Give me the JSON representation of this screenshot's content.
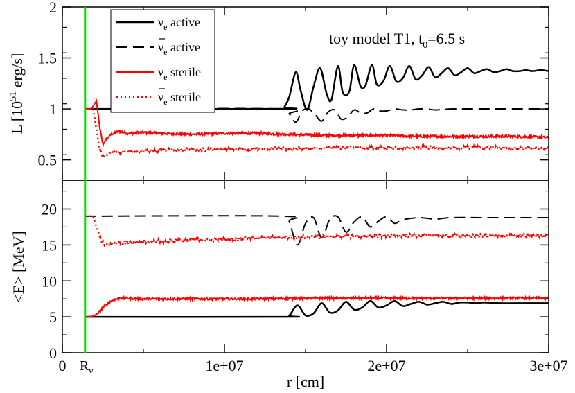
{
  "colors": {
    "active": "#000000",
    "sterile": "#ff0000",
    "rnu_line": "#00dd00",
    "frame": "#000000"
  },
  "chart_data": [
    {
      "type": "line",
      "panel": "top",
      "annotation": "toy model T1, t",
      "annotation_sub": "0",
      "annotation_tail": "=6.5 s",
      "ylabel_main": "L [10",
      "ylabel_sup": "51",
      "ylabel_tail": " erg/s]",
      "ylim": [
        0.3,
        2.0
      ],
      "xlim": [
        0,
        30000000.0
      ],
      "yticks": [
        {
          "value": 0.5,
          "label": "0.5"
        },
        {
          "value": 1.0,
          "label": "1"
        },
        {
          "value": 1.5,
          "label": "1.5"
        },
        {
          "value": 2.0,
          "label": "2"
        }
      ],
      "legend": {
        "placement": "top-left",
        "entries": [
          {
            "nu": "ν",
            "sub": "e",
            "bar": false,
            "text": " active",
            "style": "solid",
            "color": "#000000"
          },
          {
            "nu": "ν",
            "sub": "e",
            "bar": true,
            "text": " active",
            "style": "dashed",
            "color": "#000000"
          },
          {
            "nu": "ν",
            "sub": "e",
            "bar": false,
            "text": " sterile",
            "style": "solid",
            "color": "#ff0000"
          },
          {
            "nu": "ν",
            "sub": "e",
            "bar": true,
            "text": " sterile",
            "style": "dotted",
            "color": "#ff0000"
          }
        ]
      },
      "series": [
        {
          "name": "νe active",
          "color": "#000000",
          "style": "solid",
          "x": [
            1400000.0,
            13500000.0,
            13700000.0,
            14000000.0,
            14400000.0,
            14700000.0,
            15100000.0,
            15500000.0,
            15900000.0,
            16300000.0,
            16600000.0,
            17000000.0,
            17300000.0,
            17700000.0,
            18000000.0,
            18400000.0,
            18700000.0,
            19100000.0,
            19400000.0,
            19800000.0,
            20200000.0,
            20600000.0,
            21000000.0,
            21400000.0,
            21800000.0,
            22200000.0,
            22600000.0,
            23000000.0,
            23400000.0,
            23800000.0,
            24200000.0,
            24600000.0,
            25000000.0,
            25400000.0,
            25800000.0,
            26200000.0,
            26600000.0,
            27000000.0,
            27400000.0,
            27800000.0,
            28200000.0,
            28600000.0,
            29000000.0,
            29500000.0,
            30000000.0
          ],
          "y": [
            1.0,
            1.0,
            1.02,
            1.12,
            1.36,
            1.18,
            0.99,
            1.22,
            1.4,
            1.15,
            1.09,
            1.42,
            1.16,
            1.17,
            1.43,
            1.22,
            1.23,
            1.43,
            1.24,
            1.27,
            1.42,
            1.27,
            1.3,
            1.42,
            1.29,
            1.33,
            1.41,
            1.31,
            1.35,
            1.4,
            1.33,
            1.36,
            1.4,
            1.35,
            1.37,
            1.39,
            1.36,
            1.37,
            1.39,
            1.37,
            1.37,
            1.38,
            1.37,
            1.38,
            1.37
          ]
        },
        {
          "name": "ν̄e active",
          "color": "#000000",
          "style": "dashed",
          "x": [
            1400000.0,
            13600000.0,
            14000000.0,
            14400000.0,
            14800000.0,
            15200000.0,
            15600000.0,
            16000000.0,
            16400000.0,
            16800000.0,
            17200000.0,
            17600000.0,
            18000000.0,
            18400000.0,
            18800000.0,
            19200000.0,
            19600000.0,
            20000000.0,
            20500000.0,
            21000000.0,
            21500000.0,
            22000000.0,
            22500000.0,
            23000000.0,
            24000000.0,
            25000000.0,
            26000000.0,
            27000000.0,
            28000000.0,
            30000000.0
          ],
          "y": [
            1.0,
            1.0,
            0.95,
            0.87,
            0.98,
            1.0,
            0.94,
            0.88,
            0.97,
            0.99,
            0.9,
            0.92,
            0.99,
            0.96,
            0.96,
            1.0,
            0.98,
            0.98,
            1.0,
            0.99,
            0.99,
            1.0,
            1.0,
            0.99,
            1.0,
            1.0,
            1.0,
            1.0,
            1.0,
            1.0
          ]
        },
        {
          "name": "νe sterile",
          "color": "#ff0000",
          "style": "solid",
          "x": [
            1400000.0,
            1800000.0,
            2100000.0,
            2300000.0,
            2500000.0,
            2700000.0,
            3000000.0,
            3500000.0,
            4000000.0,
            5000000.0,
            6000000.0,
            8000000.0,
            10000000.0,
            12000000.0,
            14000000.0,
            16000000.0,
            18000000.0,
            20000000.0,
            22000000.0,
            24000000.0,
            26000000.0,
            28000000.0,
            30000000.0
          ],
          "y": [
            1.0,
            1.0,
            1.08,
            0.82,
            0.65,
            0.7,
            0.75,
            0.78,
            0.76,
            0.77,
            0.76,
            0.75,
            0.76,
            0.76,
            0.75,
            0.74,
            0.74,
            0.74,
            0.73,
            0.73,
            0.73,
            0.73,
            0.72
          ],
          "noise": 0.012
        },
        {
          "name": "ν̄e sterile",
          "color": "#ff0000",
          "style": "dotted",
          "x": [
            1400000.0,
            1900000.0,
            2100000.0,
            2300000.0,
            2500000.0,
            2800000.0,
            3200000.0,
            4000000.0,
            6000000.0,
            8000000.0,
            10000000.0,
            12000000.0,
            15000000.0,
            18000000.0,
            21000000.0,
            24000000.0,
            27000000.0,
            30000000.0
          ],
          "y": [
            1.0,
            1.0,
            0.8,
            0.6,
            0.52,
            0.56,
            0.58,
            0.58,
            0.59,
            0.6,
            0.6,
            0.61,
            0.61,
            0.62,
            0.62,
            0.62,
            0.62,
            0.61
          ],
          "noise": 0.015
        }
      ]
    },
    {
      "type": "line",
      "panel": "bottom",
      "ylabel": "<E> [MeV]",
      "xlabel": "r [cm]",
      "ylim": [
        0,
        24
      ],
      "xlim": [
        0,
        30000000.0
      ],
      "yticks": [
        {
          "value": 0,
          "label": "0"
        },
        {
          "value": 5,
          "label": "5"
        },
        {
          "value": 10,
          "label": "10"
        },
        {
          "value": 15,
          "label": "15"
        },
        {
          "value": 20,
          "label": "20"
        }
      ],
      "xticks": [
        {
          "value": 0,
          "label": "0"
        },
        {
          "value": 10000000.0,
          "label": "1e+07"
        },
        {
          "value": 20000000.0,
          "label": "2e+07"
        },
        {
          "value": 30000000.0,
          "label": "3e+07"
        }
      ],
      "rnu": {
        "value": 1400000.0,
        "label": "R",
        "sub": "ν"
      },
      "series": [
        {
          "name": "νe active",
          "color": "#000000",
          "style": "solid",
          "x": [
            1400000.0,
            13600000.0,
            14000000.0,
            14500000.0,
            15000000.0,
            15500000.0,
            16000000.0,
            16500000.0,
            17000000.0,
            17500000.0,
            18000000.0,
            18500000.0,
            19000000.0,
            19500000.0,
            20000000.0,
            20500000.0,
            21000000.0,
            21500000.0,
            22000000.0,
            22500000.0,
            23000000.0,
            23500000.0,
            24000000.0,
            24500000.0,
            25000000.0,
            25500000.0,
            26000000.0,
            27000000.0,
            28000000.0,
            29000000.0,
            30000000.0
          ],
          "y": [
            5.0,
            5.0,
            5.2,
            6.6,
            5.2,
            5.5,
            6.9,
            5.6,
            5.9,
            7.1,
            6.0,
            6.3,
            7.2,
            6.3,
            6.6,
            7.2,
            6.5,
            6.8,
            7.1,
            6.7,
            6.9,
            7.1,
            6.8,
            7.0,
            7.0,
            6.9,
            7.0,
            6.9,
            6.9,
            6.9,
            6.9
          ]
        },
        {
          "name": "ν̄e active",
          "color": "#000000",
          "style": "dashed",
          "x": [
            1400000.0,
            13600000.0,
            14000000.0,
            14500000.0,
            15000000.0,
            15500000.0,
            16000000.0,
            16500000.0,
            17000000.0,
            17500000.0,
            18000000.0,
            18500000.0,
            19000000.0,
            19500000.0,
            20000000.0,
            20500000.0,
            21000000.0,
            22000000.0,
            23000000.0,
            24000000.0,
            26000000.0,
            28000000.0,
            30000000.0
          ],
          "y": [
            19.0,
            19.0,
            18.2,
            15.0,
            18.0,
            18.8,
            16.0,
            18.6,
            18.9,
            16.8,
            18.2,
            18.9,
            17.5,
            18.3,
            18.9,
            18.0,
            18.5,
            18.8,
            18.6,
            18.8,
            18.8,
            18.8,
            18.8
          ]
        },
        {
          "name": "νe sterile",
          "color": "#ff0000",
          "style": "solid",
          "x": [
            1400000.0,
            1900000.0,
            2200000.0,
            2600000.0,
            3000000.0,
            3500000.0,
            4000000.0,
            5000000.0,
            6000000.0,
            8000000.0,
            10000000.0,
            12000000.0,
            15000000.0,
            18000000.0,
            21000000.0,
            24000000.0,
            27000000.0,
            30000000.0
          ],
          "y": [
            5.0,
            5.1,
            5.5,
            6.5,
            7.2,
            7.6,
            7.6,
            7.5,
            7.5,
            7.5,
            7.5,
            7.5,
            7.6,
            7.6,
            7.6,
            7.6,
            7.6,
            7.6
          ],
          "noise": 0.15
        },
        {
          "name": "ν̄e sterile",
          "color": "#ff0000",
          "style": "dotted",
          "x": [
            1400000.0,
            1900000.0,
            2100000.0,
            2400000.0,
            2800000.0,
            3200000.0,
            4000000.0,
            6000000.0,
            8000000.0,
            10000000.0,
            12000000.0,
            15000000.0,
            18000000.0,
            21000000.0,
            24000000.0,
            27000000.0,
            30000000.0
          ],
          "y": [
            19.0,
            19.0,
            17.5,
            15.5,
            14.8,
            15.3,
            15.4,
            15.5,
            15.7,
            15.8,
            16.0,
            16.1,
            16.2,
            16.3,
            16.3,
            16.3,
            16.3
          ],
          "noise": 0.25
        }
      ]
    }
  ]
}
